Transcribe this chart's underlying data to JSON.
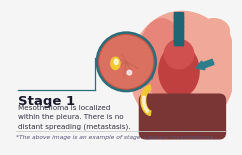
{
  "bg_color": "#f5f5f5",
  "title_text": "Stage 1",
  "title_color": "#1a1a2e",
  "body_text": "Mesothelioma is localized\nwithin the pleura. There is no\ndistant spreading (metastasis).",
  "body_color": "#333344",
  "footnote_text": "*The above image is an example of stage 1 pleural mesothelioma.",
  "footnote_color": "#555577",
  "line_color": "#cccccc",
  "lung_salmon": "#e8857a",
  "lung_light": "#f0a898",
  "lung_pink": "#d96a5f",
  "heart_dark": "#c04040",
  "heart_med": "#d05050",
  "liver_dark": "#7a3535",
  "liver_tan": "#c89080",
  "teal_dark": "#1e6575",
  "teal_mid": "#2d7d8a",
  "yellow": "#f0c830",
  "yellow_light": "#f5e090",
  "zoom_rim": "#2a6e7a",
  "zoom_dark_ring": "#c05545",
  "zoom_inner": "#d97060",
  "zoom_vein": "#c06050",
  "white": "#ffffff",
  "connector": "#2a6e7a"
}
